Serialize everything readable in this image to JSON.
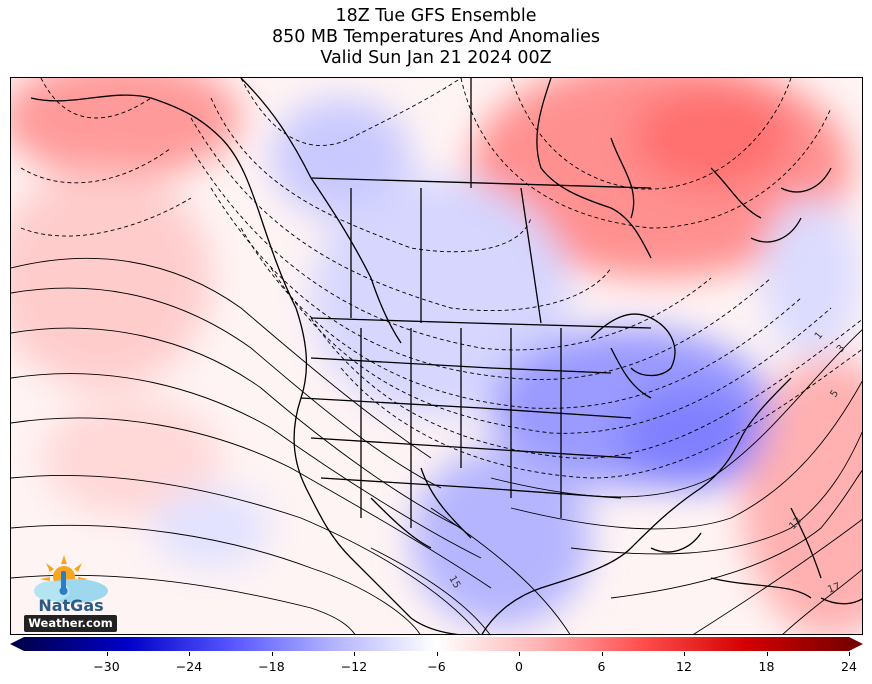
{
  "title": {
    "line1": "18Z Tue GFS Ensemble",
    "line2": "850 MB Temperatures And Anomalies",
    "line3": "Valid Sun Jan 21 2024 00Z"
  },
  "colorbar": {
    "min": -36,
    "max": 24,
    "tick_values": [
      -30,
      -24,
      -18,
      -12,
      -6,
      0,
      6,
      12,
      18,
      24
    ],
    "tick_labels": [
      "−30",
      "−24",
      "−18",
      "−12",
      "−6",
      "0",
      "6",
      "12",
      "18",
      "24"
    ],
    "colors": [
      "#000050",
      "#0000c8",
      "#5555ff",
      "#b3b3ff",
      "#ffffff",
      "#ffb3b3",
      "#ff4d4d",
      "#d40000",
      "#7a0000"
    ]
  },
  "contour_labels": [
    "1",
    "3",
    "5",
    "13",
    "15",
    "17"
  ],
  "logo": {
    "name": "NatGas",
    "sub": "Weather.com"
  }
}
